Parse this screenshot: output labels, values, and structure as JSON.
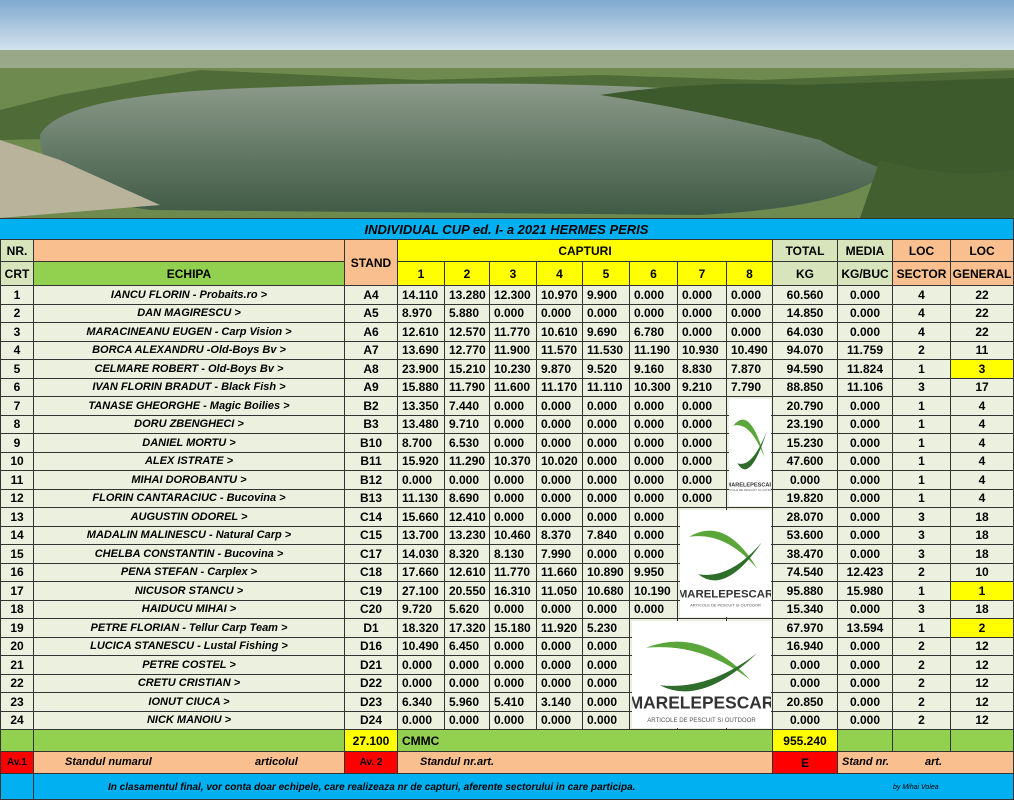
{
  "title": "INDIVIDUAL  CUP ed. I- a  2021 HERMES PERIS",
  "header": {
    "nr": "NR.",
    "crt": "CRT",
    "echipa": "ECHIPA",
    "stand": "STAND",
    "capturi": "CAPTURI",
    "capture_numbers": [
      "1",
      "2",
      "3",
      "4",
      "5",
      "6",
      "7",
      "8"
    ],
    "total": "TOTAL",
    "kg": "KG",
    "media": "MEDIA",
    "kg_buc": "KG/BUC",
    "loc_sector": "LOC",
    "sector": "SECTOR",
    "loc_general": "LOC",
    "general": "GENERAL"
  },
  "rows": [
    {
      "nr": "1",
      "name": "IANCU  FLORIN - Probaits.ro  >",
      "stand": "A4",
      "captures": [
        "14.110",
        "13.280",
        "12.300",
        "10.970",
        "9.900",
        "0.000",
        "0.000",
        "0.000"
      ],
      "total": "60.560",
      "media": "0.000",
      "sector": "4",
      "general": "22"
    },
    {
      "nr": "2",
      "name": "DAN  MAGIRESCU  >",
      "stand": "A5",
      "captures": [
        "8.970",
        "5.880",
        "0.000",
        "0.000",
        "0.000",
        "0.000",
        "0.000",
        "0.000"
      ],
      "total": "14.850",
      "media": "0.000",
      "sector": "4",
      "general": "22"
    },
    {
      "nr": "3",
      "name": "MARACINEANU EUGEN - Carp Vision  >",
      "stand": "A6",
      "captures": [
        "12.610",
        "12.570",
        "11.770",
        "10.610",
        "9.690",
        "6.780",
        "0.000",
        "0.000"
      ],
      "total": "64.030",
      "media": "0.000",
      "sector": "4",
      "general": "22"
    },
    {
      "nr": "4",
      "name": "BORCA  ALEXANDRU  -Old-Boys Bv >",
      "stand": "A7",
      "captures": [
        "13.690",
        "12.770",
        "11.900",
        "11.570",
        "11.530",
        "11.190",
        "10.930",
        "10.490"
      ],
      "total": "94.070",
      "media": "11.759",
      "sector": "2",
      "general": "11"
    },
    {
      "nr": "5",
      "name": "CELMARE  ROBERT - Old-Boys Bv >",
      "stand": "A8",
      "captures": [
        "23.900",
        "15.210",
        "10.230",
        "9.870",
        "9.520",
        "9.160",
        "8.830",
        "7.870"
      ],
      "total": "94.590",
      "media": "11.824",
      "sector": "1",
      "general": "3",
      "highlight_general": true
    },
    {
      "nr": "6",
      "name": "IVAN FLORIN BRADUT - Black Fish  >",
      "stand": "A9",
      "captures": [
        "15.880",
        "11.790",
        "11.600",
        "11.170",
        "11.110",
        "10.300",
        "9.210",
        "7.790"
      ],
      "total": "88.850",
      "media": "11.106",
      "sector": "3",
      "general": "17"
    },
    {
      "nr": "7",
      "name": "TANASE GHEORGHE - Magic Boilies  >",
      "stand": "B2",
      "captures": [
        "13.350",
        "7.440",
        "0.000",
        "0.000",
        "0.000",
        "0.000",
        "0.000"
      ],
      "total": "20.790",
      "media": "0.000",
      "sector": "1",
      "general": "4"
    },
    {
      "nr": "8",
      "name": "DORU  ZBENGHECI  >",
      "stand": "B3",
      "captures": [
        "13.480",
        "9.710",
        "0.000",
        "0.000",
        "0.000",
        "0.000",
        "0.000"
      ],
      "total": "23.190",
      "media": "0.000",
      "sector": "1",
      "general": "4"
    },
    {
      "nr": "9",
      "name": "DANIEL  MORTU  >",
      "stand": "B10",
      "captures": [
        "8.700",
        "6.530",
        "0.000",
        "0.000",
        "0.000",
        "0.000",
        "0.000"
      ],
      "total": "15.230",
      "media": "0.000",
      "sector": "1",
      "general": "4"
    },
    {
      "nr": "10",
      "name": "ALEX  ISTRATE   >",
      "stand": "B11",
      "captures": [
        "15.920",
        "11.290",
        "10.370",
        "10.020",
        "0.000",
        "0.000",
        "0.000"
      ],
      "total": "47.600",
      "media": "0.000",
      "sector": "1",
      "general": "4"
    },
    {
      "nr": "11",
      "name": "MIHAI DOROBANTU  >",
      "stand": "B12",
      "captures": [
        "0.000",
        "0.000",
        "0.000",
        "0.000",
        "0.000",
        "0.000",
        "0.000"
      ],
      "total": "0.000",
      "media": "0.000",
      "sector": "1",
      "general": "4"
    },
    {
      "nr": "12",
      "name": "FLORIN  CANTARACIUC - Bucovina  >",
      "stand": "B13",
      "captures": [
        "11.130",
        "8.690",
        "0.000",
        "0.000",
        "0.000",
        "0.000",
        "0.000"
      ],
      "total": "19.820",
      "media": "0.000",
      "sector": "1",
      "general": "4"
    },
    {
      "nr": "13",
      "name": "AUGUSTIN  ODOREL  >",
      "stand": "C14",
      "captures": [
        "15.660",
        "12.410",
        "0.000",
        "0.000",
        "0.000",
        "0.000"
      ],
      "total": "28.070",
      "media": "0.000",
      "sector": "3",
      "general": "18"
    },
    {
      "nr": "14",
      "name": "MADALIN  MALINESCU - Natural Carp >",
      "stand": "C15",
      "captures": [
        "13.700",
        "13.230",
        "10.460",
        "8.370",
        "7.840",
        "0.000"
      ],
      "total": "53.600",
      "media": "0.000",
      "sector": "3",
      "general": "18"
    },
    {
      "nr": "15",
      "name": "CHELBA  CONSTANTIN - Bucovina  >",
      "stand": "C17",
      "captures": [
        "14.030",
        "8.320",
        "8.130",
        "7.990",
        "0.000",
        "0.000"
      ],
      "total": "38.470",
      "media": "0.000",
      "sector": "3",
      "general": "18"
    },
    {
      "nr": "16",
      "name": "PENA  STEFAN - Carplex  >",
      "stand": "C18",
      "captures": [
        "17.660",
        "12.610",
        "11.770",
        "11.660",
        "10.890",
        "9.950"
      ],
      "total": "74.540",
      "media": "12.423",
      "sector": "2",
      "general": "10"
    },
    {
      "nr": "17",
      "name": "NICUSOR  STANCU  >",
      "stand": "C19",
      "captures": [
        "27.100",
        "20.550",
        "16.310",
        "11.050",
        "10.680",
        "10.190"
      ],
      "total": "95.880",
      "media": "15.980",
      "sector": "1",
      "general": "1",
      "highlight_general": true
    },
    {
      "nr": "18",
      "name": "HAIDUCU MIHAI  >",
      "stand": "C20",
      "captures": [
        "9.720",
        "5.620",
        "0.000",
        "0.000",
        "0.000",
        "0.000"
      ],
      "total": "15.340",
      "media": "0.000",
      "sector": "3",
      "general": "18"
    },
    {
      "nr": "19",
      "name": "PETRE  FLORIAN - Tellur Carp Team >",
      "stand": "D1",
      "captures": [
        "18.320",
        "17.320",
        "15.180",
        "11.920",
        "5.230"
      ],
      "total": "67.970",
      "media": "13.594",
      "sector": "1",
      "general": "2",
      "highlight_general": true
    },
    {
      "nr": "20",
      "name": "LUCICA STANESCU - Lustal Fishing >",
      "stand": "D16",
      "captures": [
        "10.490",
        "6.450",
        "0.000",
        "0.000",
        "0.000"
      ],
      "total": "16.940",
      "media": "0.000",
      "sector": "2",
      "general": "12"
    },
    {
      "nr": "21",
      "name": "PETRE  COSTEL  >",
      "stand": "D21",
      "captures": [
        "0.000",
        "0.000",
        "0.000",
        "0.000",
        "0.000"
      ],
      "total": "0.000",
      "media": "0.000",
      "sector": "2",
      "general": "12"
    },
    {
      "nr": "22",
      "name": "CRETU  CRISTIAN  >",
      "stand": "D22",
      "captures": [
        "0.000",
        "0.000",
        "0.000",
        "0.000",
        "0.000"
      ],
      "total": "0.000",
      "media": "0.000",
      "sector": "2",
      "general": "12"
    },
    {
      "nr": "23",
      "name": "IONUT  CIUCA  >",
      "stand": "D23",
      "captures": [
        "6.340",
        "5.960",
        "5.410",
        "3.140",
        "0.000"
      ],
      "total": "20.850",
      "media": "0.000",
      "sector": "2",
      "general": "12"
    },
    {
      "nr": "24",
      "name": "NICK  MANOIU  >",
      "stand": "D24",
      "captures": [
        "0.000",
        "0.000",
        "0.000",
        "0.000",
        "0.000"
      ],
      "total": "0.000",
      "media": "0.000",
      "sector": "2",
      "general": "12"
    }
  ],
  "footer": {
    "min_capture": "27.100",
    "min_label": "CMMC",
    "grand_total": "955.240",
    "av1": "Av.1",
    "standul_numarul": "Standul numarul",
    "articolul": "articolul",
    "av2": "Av. 2",
    "standul_nr": "Standul nr.",
    "art": "art.",
    "e": "E",
    "stand_nr": "Stand nr.",
    "art2": "art."
  },
  "note": "In clasamentul final, vor conta doar echipele, care realizeaza nr de capturi, aferente sectorului in care participa.",
  "signature": "by Mihai Volea",
  "logo": {
    "name": "MARELEPESCAR",
    "tagline": "ARTICOLE DE PESCUIT SI OUTDOOR"
  }
}
